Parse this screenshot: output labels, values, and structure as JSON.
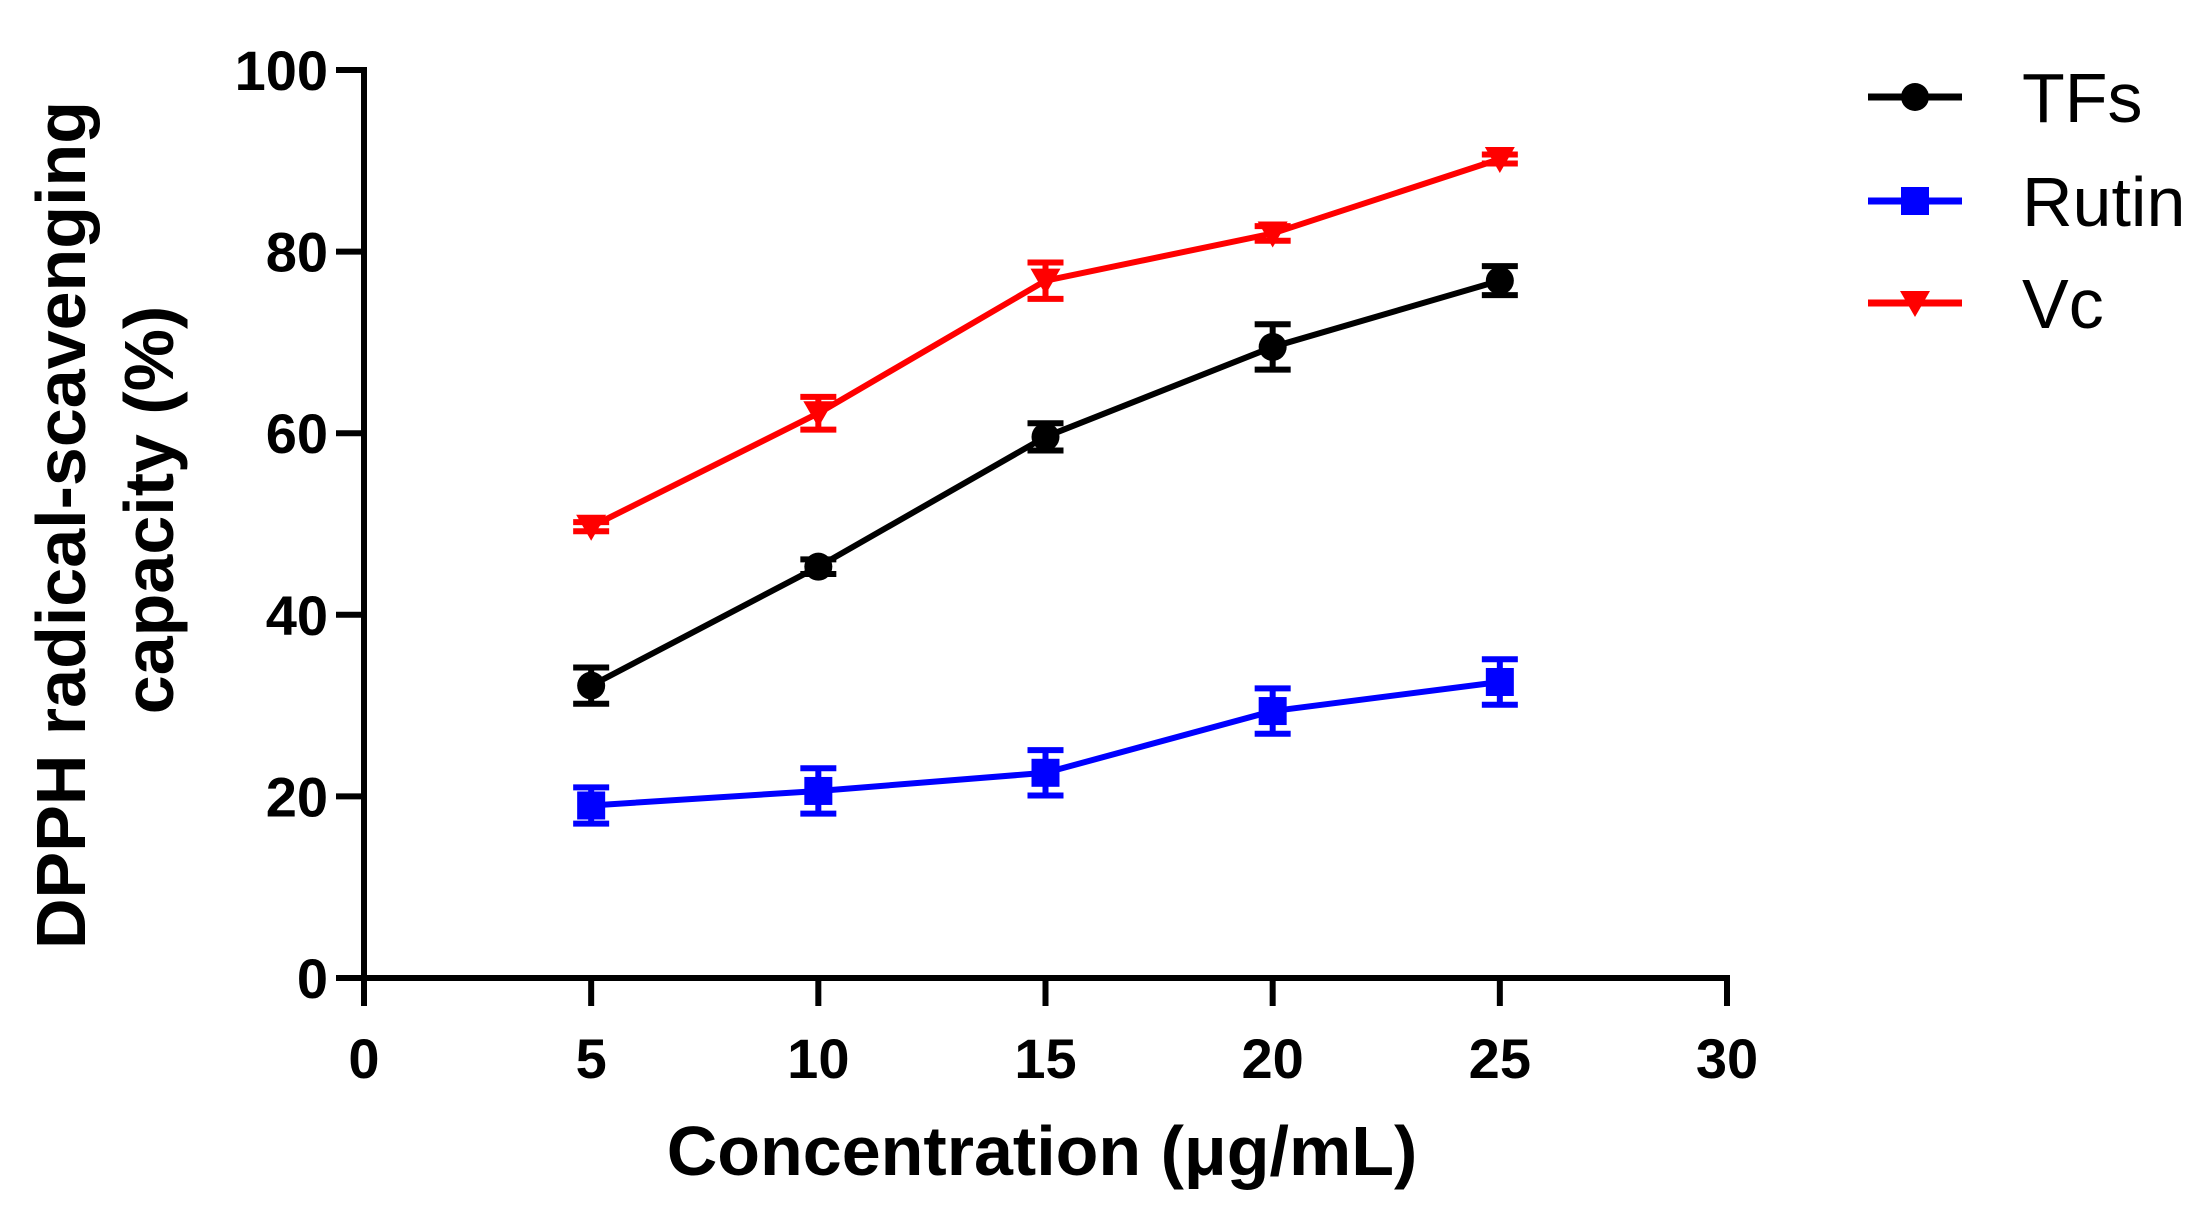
{
  "chart_data": {
    "type": "line",
    "title": "",
    "xlabel": "Concentration (μg/mL)",
    "ylabel_line1": "DPPH radical-scavenging",
    "ylabel_line2": "capacity (%)",
    "xlim": [
      0,
      30
    ],
    "ylim": [
      0,
      100
    ],
    "xticks": [
      0,
      5,
      10,
      15,
      20,
      25,
      30
    ],
    "yticks": [
      0,
      20,
      40,
      60,
      80,
      100
    ],
    "grid": false,
    "legend_position": "top-right",
    "x": [
      5,
      10,
      15,
      20,
      25
    ],
    "series": [
      {
        "name": "TFs",
        "color": "#000000",
        "marker": "circle",
        "values": [
          32.2,
          45.3,
          59.6,
          69.5,
          76.8
        ],
        "errors": [
          2.0,
          0.8,
          1.5,
          2.5,
          1.6
        ]
      },
      {
        "name": "Rutin",
        "color": "#0000ff",
        "marker": "square",
        "values": [
          19.0,
          20.6,
          22.6,
          29.4,
          32.6
        ],
        "errors": [
          2.0,
          2.5,
          2.5,
          2.5,
          2.5
        ]
      },
      {
        "name": "Vc",
        "color": "#ff0000",
        "marker": "triangle-down",
        "values": [
          49.7,
          62.2,
          76.8,
          82.0,
          90.2
        ],
        "errors": [
          0.5,
          1.8,
          2.0,
          0.8,
          0.5
        ]
      }
    ]
  }
}
